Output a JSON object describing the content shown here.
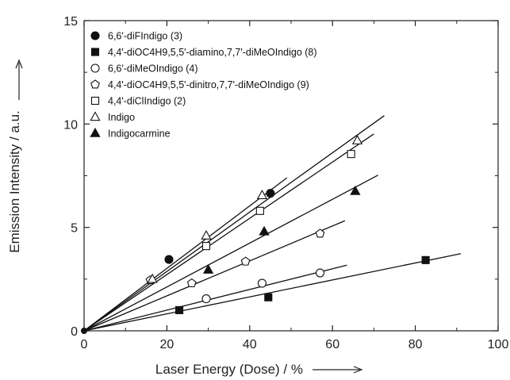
{
  "chart_data": {
    "type": "scatter",
    "xlabel": "Laser Energy (Dose) / %",
    "ylabel": "Emission Intensity / a.u.",
    "xlim": [
      0,
      100
    ],
    "ylim": [
      0,
      15
    ],
    "x_ticks": [
      "0",
      "20",
      "40",
      "60",
      "80",
      "100"
    ],
    "y_ticks": [
      "0",
      "5",
      "10",
      "15"
    ],
    "grid": false,
    "legend_position": "top-left",
    "series": [
      {
        "key": "difindigo",
        "name": "6,6'-diFIndigo (3)",
        "marker": "filled-circle",
        "points": [
          [
            0,
            0
          ],
          [
            20.5,
            3.45
          ],
          [
            45,
            6.65
          ]
        ],
        "fit": {
          "slope": 0.151,
          "x_end": 49
        }
      },
      {
        "key": "dioc4h9_diamino",
        "name": "4,4'-diOC4H9,5,5'-diamino,7,7'-diMeOIndigo (8)",
        "marker": "filled-square",
        "points": [
          [
            0,
            0
          ],
          [
            23,
            1.0
          ],
          [
            44.5,
            1.62
          ],
          [
            82.5,
            3.42
          ]
        ],
        "fit": {
          "slope": 0.041,
          "x_end": 91
        }
      },
      {
        "key": "dimeoindigo",
        "name": "6,6'-diMeOIndigo (4)",
        "marker": "open-circle",
        "points": [
          [
            0,
            0
          ],
          [
            29.5,
            1.55
          ],
          [
            43,
            2.3
          ],
          [
            57,
            2.8
          ]
        ],
        "fit": {
          "slope": 0.05,
          "x_end": 63.5
        }
      },
      {
        "key": "dioc4h9_dinitro",
        "name": "4,4'-diOC4H9,5,5'-dinitro,7,7'-diMeOIndigo (9)",
        "marker": "open-pentagon",
        "points": [
          [
            0,
            0
          ],
          [
            16,
            2.45
          ],
          [
            26,
            2.3
          ],
          [
            39,
            3.35
          ],
          [
            57,
            4.7
          ]
        ],
        "fit": {
          "slope": 0.0845,
          "x_end": 63
        }
      },
      {
        "key": "diclindigo",
        "name": "4,4'-diClIndigo (2)",
        "marker": "open-square",
        "points": [
          [
            0,
            0
          ],
          [
            29.5,
            4.1
          ],
          [
            42.5,
            5.8
          ],
          [
            64.5,
            8.55
          ]
        ],
        "fit": {
          "slope": 0.136,
          "x_end": 70
        }
      },
      {
        "key": "indigo",
        "name": "Indigo",
        "marker": "open-triangle",
        "points": [
          [
            0,
            0
          ],
          [
            16.5,
            2.5
          ],
          [
            29.5,
            4.6
          ],
          [
            43,
            6.55
          ],
          [
            66,
            9.2
          ]
        ],
        "fit": {
          "slope": 0.1435,
          "x_end": 72.5
        }
      },
      {
        "key": "indigocarmine",
        "name": "Indigocarmine",
        "marker": "filled-triangle",
        "points": [
          [
            0,
            0
          ],
          [
            30,
            2.95
          ],
          [
            43.5,
            4.8
          ],
          [
            65.5,
            6.75
          ]
        ],
        "fit": {
          "slope": 0.106,
          "x_end": 71
        }
      }
    ]
  }
}
